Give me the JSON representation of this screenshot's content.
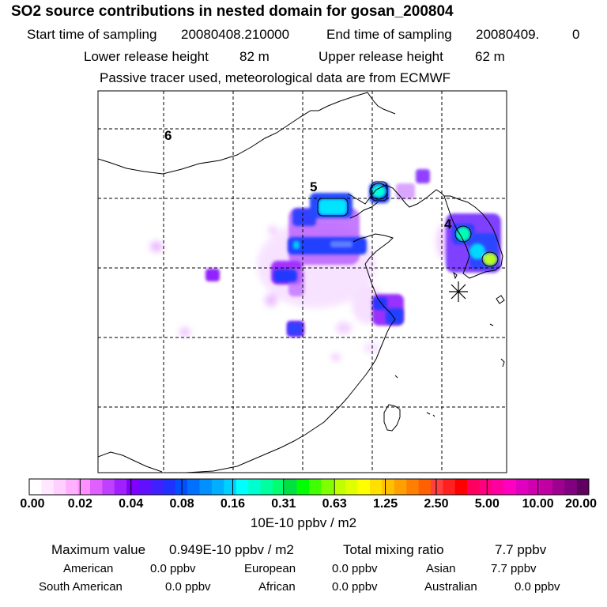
{
  "title": "SO2 source contributions in nested domain for gosan_200804",
  "header": {
    "start_label": "Start time of sampling",
    "start_value": "20080408.210000",
    "end_label": "End time of sampling",
    "end_value": "20080409.",
    "end_extra": "0",
    "lower_label": "Lower release height",
    "lower_value": "82 m",
    "upper_label": "Upper release height",
    "upper_value": "62 m",
    "info": "Passive tracer used, meteorological data are from ECMWF"
  },
  "map": {
    "grid_labels": [
      "6",
      "5",
      "4"
    ],
    "receptor": "gosan"
  },
  "colorbar": {
    "ticks": [
      "0.00",
      "0.02",
      "0.04",
      "0.08",
      "0.16",
      "0.31",
      "0.63",
      "1.25",
      "2.50",
      "5.00",
      "10.00",
      "20.00"
    ],
    "unit": "10E-10 ppbv / m2",
    "colors": [
      "#ffffff",
      "#ffe8ff",
      "#ffd0ff",
      "#ffb0ff",
      "#ff90ff",
      "#e060ff",
      "#c040ff",
      "#a020ff",
      "#8000ff",
      "#6010ff",
      "#4020ff",
      "#2030ff",
      "#0050ff",
      "#0070ff",
      "#0090ff",
      "#00b0ff",
      "#00d0ff",
      "#00ffff",
      "#00ffd0",
      "#00ffa0",
      "#00ff70",
      "#00e040",
      "#00ff00",
      "#40ff00",
      "#80ff00",
      "#c0ff00",
      "#e0ff00",
      "#ffff00",
      "#ffe000",
      "#ffc000",
      "#ffa000",
      "#ff8000",
      "#ff6000",
      "#ff4040",
      "#ff2020",
      "#ff0000",
      "#ff0060",
      "#ff0080",
      "#ff00a0",
      "#ff00c0",
      "#e000c0",
      "#d000b0",
      "#c000a0",
      "#a00090",
      "#800080",
      "#600060"
    ]
  },
  "footer": {
    "max_label": "Maximum value",
    "max_value": "0.949E-10 ppbv / m2",
    "total_label": "Total mixing ratio",
    "total_value": "7.7 ppbv",
    "regions": [
      {
        "name": "American",
        "value": "0.0 ppbv"
      },
      {
        "name": "European",
        "value": "0.0 ppbv"
      },
      {
        "name": "Asian",
        "value": "7.7 ppbv"
      },
      {
        "name": "South American",
        "value": "0.0 ppbv"
      },
      {
        "name": "African",
        "value": "0.0 ppbv"
      },
      {
        "name": "Australian",
        "value": "0.0 ppbv"
      }
    ]
  }
}
